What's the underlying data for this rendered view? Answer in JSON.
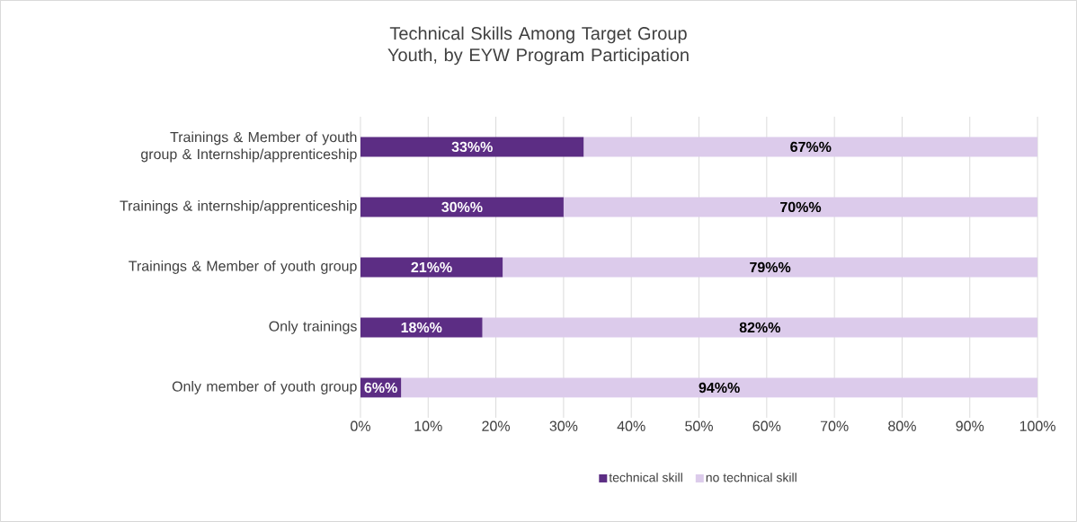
{
  "chart_data": {
    "type": "bar",
    "orientation": "horizontal",
    "stacked": true,
    "title": "Technical Skills Among Target Group Youth, by EYW Program Participation",
    "categories": [
      "Trainings & Member of youth group & Internship/apprenticeship",
      "Trainings & internship/apprenticeship",
      "Trainings & Member of youth group",
      "Only trainings",
      "Only member of youth group"
    ],
    "series": [
      {
        "name": "technical skill",
        "color": "#5c2d84",
        "values": [
          33,
          30,
          21,
          18,
          6
        ],
        "value_labels": [
          "33%%",
          "30%%",
          "21%%",
          "18%%",
          "6%%"
        ]
      },
      {
        "name": "no technical skill",
        "color": "#dccbeb",
        "values": [
          67,
          70,
          79,
          82,
          94
        ],
        "value_labels": [
          "67%%",
          "70%%",
          "79%%",
          "82%%",
          "94%%"
        ]
      }
    ],
    "xlim": [
      0,
      100
    ],
    "xticks": [
      {
        "value": 0,
        "label": "0%"
      },
      {
        "value": 10,
        "label": "10%"
      },
      {
        "value": 20,
        "label": "20%"
      },
      {
        "value": 30,
        "label": "30%"
      },
      {
        "value": 40,
        "label": "40%"
      },
      {
        "value": 50,
        "label": "50%"
      },
      {
        "value": 60,
        "label": "60%"
      },
      {
        "value": 70,
        "label": "70%"
      },
      {
        "value": 80,
        "label": "80%"
      },
      {
        "value": 90,
        "label": "90%"
      },
      {
        "value": 100,
        "label": "100%"
      }
    ],
    "grid": "x",
    "legend": "bottom"
  }
}
